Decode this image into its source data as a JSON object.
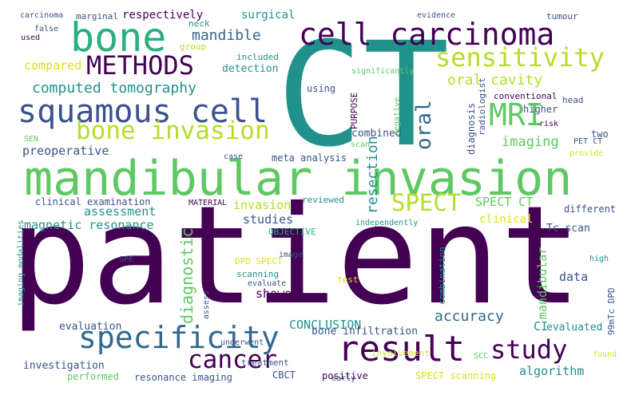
{
  "palette": {
    "dark_purple": "#440154",
    "indigo": "#3b528b",
    "slate": "#31688e",
    "teal": "#21918c",
    "sea_green": "#2ab07f",
    "green": "#5ec962",
    "lime": "#b5de2b",
    "yellow": "#d8e219"
  },
  "words": [
    {
      "text": "patient",
      "color": "#440154",
      "orient": "h"
    },
    {
      "text": "CT",
      "color": "#21918c",
      "orient": "h"
    },
    {
      "text": "mandibular invasion",
      "color": "#5ec962",
      "orient": "h"
    },
    {
      "text": "result",
      "color": "#440154",
      "orient": "h"
    },
    {
      "text": "bone",
      "color": "#2ab07f",
      "orient": "h"
    },
    {
      "text": "cell carcinoma",
      "color": "#440154",
      "orient": "h"
    },
    {
      "text": "squamous cell",
      "color": "#3b528b",
      "orient": "h"
    },
    {
      "text": "METHODS",
      "color": "#440154",
      "orient": "h"
    },
    {
      "text": "sensitivity",
      "color": "#b5de2b",
      "orient": "h"
    },
    {
      "text": "MRI",
      "color": "#5ec962",
      "orient": "h"
    },
    {
      "text": "bone invasion",
      "color": "#b5de2b",
      "orient": "h"
    },
    {
      "text": "specificity",
      "color": "#31688e",
      "orient": "h"
    },
    {
      "text": "cancer",
      "color": "#440154",
      "orient": "h"
    },
    {
      "text": "study",
      "color": "#440154",
      "orient": "h"
    },
    {
      "text": "SPECT",
      "color": "#b5de2b",
      "orient": "h"
    },
    {
      "text": "oral",
      "color": "#31688e",
      "orient": "v"
    },
    {
      "text": "computed tomography",
      "color": "#21918c",
      "orient": "h"
    },
    {
      "text": "oral cavity",
      "color": "#b5de2b",
      "orient": "h"
    },
    {
      "text": "mandible",
      "color": "#31688e",
      "orient": "h"
    },
    {
      "text": "diagnostic",
      "color": "#5ec962",
      "orient": "v"
    },
    {
      "text": "accuracy",
      "color": "#31688e",
      "orient": "h"
    },
    {
      "text": "resection",
      "color": "#21918c",
      "orient": "v"
    },
    {
      "text": "imaging",
      "color": "#5ec962",
      "orient": "h"
    },
    {
      "text": "preoperative",
      "color": "#3b528b",
      "orient": "h"
    },
    {
      "text": "assessment",
      "color": "#21918c",
      "orient": "h"
    },
    {
      "text": "magnetic resonance",
      "color": "#21918c",
      "orient": "h"
    },
    {
      "text": "SPECT CT",
      "color": "#5ec962",
      "orient": "h"
    },
    {
      "text": "clinical examination",
      "color": "#3b528b",
      "orient": "h"
    },
    {
      "text": "compared",
      "color": "#d8e219",
      "orient": "h"
    },
    {
      "text": "data",
      "color": "#3b528b",
      "orient": "h"
    },
    {
      "text": "studies",
      "color": "#3b528b",
      "orient": "h"
    },
    {
      "text": "showed",
      "color": "#440154",
      "orient": "h"
    },
    {
      "text": "invasion",
      "color": "#b5de2b",
      "orient": "h"
    },
    {
      "text": "mandibular",
      "color": "#5ec962",
      "orient": "v"
    },
    {
      "text": "CONCLUSION",
      "color": "#21918c",
      "orient": "h"
    },
    {
      "text": "CI",
      "color": "#21918c",
      "orient": "h"
    },
    {
      "text": "evaluated",
      "color": "#21918c",
      "orient": "h"
    },
    {
      "text": "algorithm",
      "color": "#21918c",
      "orient": "h"
    },
    {
      "text": "investigation",
      "color": "#3b528b",
      "orient": "h"
    },
    {
      "text": "diagnosis",
      "color": "#3b528b",
      "orient": "v"
    },
    {
      "text": "Tc scan",
      "color": "#3b528b",
      "orient": "h"
    },
    {
      "text": "surgical",
      "color": "#21918c",
      "orient": "h"
    },
    {
      "text": "respectively",
      "color": "#440154",
      "orient": "h"
    },
    {
      "text": "evaluation",
      "color": "#3b528b",
      "orient": "h"
    },
    {
      "text": "SPECT scanning",
      "color": "#d8e219",
      "orient": "h"
    },
    {
      "text": "resonance imaging",
      "color": "#3b528b",
      "orient": "h"
    },
    {
      "text": "bone infiltration",
      "color": "#3b528b",
      "orient": "h"
    },
    {
      "text": "detection",
      "color": "#21918c",
      "orient": "h"
    },
    {
      "text": "positive",
      "color": "#440154",
      "orient": "h"
    },
    {
      "text": "performed",
      "color": "#5ec962",
      "orient": "h"
    },
    {
      "text": "neck",
      "color": "#21918c",
      "orient": "h"
    },
    {
      "text": "higher",
      "color": "#3b528b",
      "orient": "h"
    },
    {
      "text": "clinical",
      "color": "#d8e219",
      "orient": "h"
    },
    {
      "text": "different",
      "color": "#3b528b",
      "orient": "h"
    },
    {
      "text": "radiologist",
      "color": "#3b528b",
      "orient": "v"
    },
    {
      "text": "combined",
      "color": "#3b528b",
      "orient": "h"
    },
    {
      "text": "conventional",
      "color": "#440154",
      "orient": "h"
    },
    {
      "text": "included",
      "color": "#21918c",
      "orient": "h"
    },
    {
      "text": "meta analysis",
      "color": "#3b528b",
      "orient": "h"
    },
    {
      "text": "treatment",
      "color": "#3b528b",
      "orient": "h"
    },
    {
      "text": "CBCT",
      "color": "#3b528b",
      "orient": "h"
    },
    {
      "text": "using",
      "color": "#3b528b",
      "orient": "h"
    },
    {
      "text": "reviewed",
      "color": "#21918c",
      "orient": "h"
    },
    {
      "text": "test",
      "color": "#d8e219",
      "orient": "h"
    },
    {
      "text": "scanning",
      "color": "#21918c",
      "orient": "h"
    },
    {
      "text": "MATERIAL",
      "color": "#440154",
      "orient": "h"
    },
    {
      "text": "OBJECTIVE",
      "color": "#2ab07f",
      "orient": "h"
    },
    {
      "text": "head",
      "color": "#3b528b",
      "orient": "h"
    },
    {
      "text": "two",
      "color": "#3b528b",
      "orient": "h"
    },
    {
      "text": "DPD SPECT",
      "color": "#d8e219",
      "orient": "h"
    },
    {
      "text": "involvement",
      "color": "#d8e219",
      "orient": "h"
    },
    {
      "text": "PURPOSE",
      "color": "#440154",
      "orient": "v"
    },
    {
      "text": "combination",
      "color": "#21918c",
      "orient": "v"
    },
    {
      "text": "evidence",
      "color": "#3b528b",
      "orient": "h"
    },
    {
      "text": "tumour",
      "color": "#3b528b",
      "orient": "h"
    },
    {
      "text": "marginal",
      "color": "#3b528b",
      "orient": "h"
    },
    {
      "text": "carcinoma",
      "color": "#3b528b",
      "orient": "h"
    },
    {
      "text": "false",
      "color": "#3b528b",
      "orient": "h"
    },
    {
      "text": "used",
      "color": "#440154",
      "orient": "h"
    },
    {
      "text": "group",
      "color": "#b5de2b",
      "orient": "h"
    },
    {
      "text": "significantly",
      "color": "#5ec962",
      "orient": "h"
    },
    {
      "text": "negative",
      "color": "#5ec962",
      "orient": "v"
    },
    {
      "text": "scan",
      "color": "#5ec962",
      "orient": "h"
    },
    {
      "text": "risk",
      "color": "#440154",
      "orient": "h"
    },
    {
      "text": "PET CT",
      "color": "#3b528b",
      "orient": "h"
    },
    {
      "text": "provide",
      "color": "#d8e219",
      "orient": "h"
    },
    {
      "text": "case",
      "color": "#3b528b",
      "orient": "h"
    },
    {
      "text": "SEN",
      "color": "#5ec962",
      "orient": "h"
    },
    {
      "text": "99mTc DPD",
      "color": "#3b528b",
      "orient": "v"
    },
    {
      "text": "high",
      "color": "#21918c",
      "orient": "h"
    },
    {
      "text": "imaging modalities",
      "color": "#21918c",
      "orient": "v"
    },
    {
      "text": "independently",
      "color": "#21918c",
      "orient": "h"
    },
    {
      "text": "SPE",
      "color": "#3b528b",
      "orient": "h"
    },
    {
      "text": "image",
      "color": "#3b528b",
      "orient": "h"
    },
    {
      "text": "evaluate",
      "color": "#3b528b",
      "orient": "h"
    },
    {
      "text": "assess",
      "color": "#3b528b",
      "orient": "v"
    },
    {
      "text": "underwent",
      "color": "#3b528b",
      "orient": "h"
    },
    {
      "text": "early",
      "color": "#3b528b",
      "orient": "h"
    },
    {
      "text": "SCC",
      "color": "#5ec962",
      "orient": "h"
    },
    {
      "text": "found",
      "color": "#d8e219",
      "orient": "h"
    }
  ]
}
